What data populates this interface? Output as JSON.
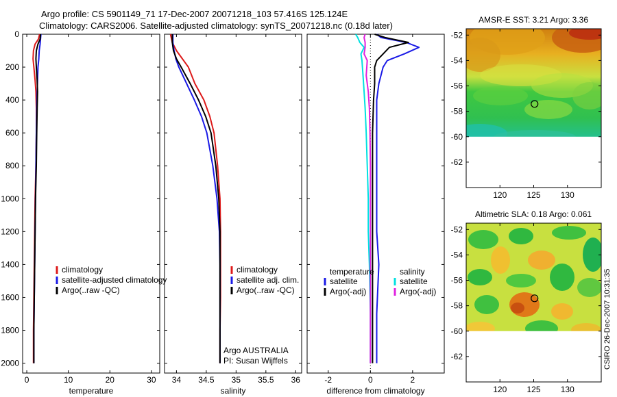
{
  "header": {
    "line1": "Argo profile: CS 5901149_71 17-Dec-2007 20071218_103 57.416S 125.124E",
    "line2": "Climatology: CARS2006. Satellite-adjusted climatology: synTS_20071218.nc (0.18d later)"
  },
  "side_label": "CSIRO 26-Dec-2007 10:31:35",
  "colors": {
    "red": "#dd1a1a",
    "blue": "#1a1ae6",
    "black": "#000000",
    "cyan": "#00e0e0",
    "magenta": "#e020e0"
  },
  "chart_data": [
    {
      "type": "line",
      "id": "temperature",
      "xlabel": "temperature",
      "ylabel": "",
      "xlim": [
        -1,
        32
      ],
      "ylim": [
        2060,
        0
      ],
      "xticks": [
        0,
        10,
        20,
        30
      ],
      "yticks": [
        0,
        200,
        400,
        600,
        800,
        1000,
        1200,
        1400,
        1600,
        1800,
        2000
      ],
      "legend": [
        "climatology",
        "satellite-adjusted climatology",
        "Argo(..raw -QC)"
      ],
      "series": [
        {
          "name": "climatology",
          "color": "red",
          "x": [
            3.1,
            2.8,
            2.0,
            1.6,
            1.5,
            1.7,
            2.0,
            2.2,
            2.3,
            2.3,
            2.2,
            2.0,
            1.9,
            1.8,
            1.7,
            1.6,
            1.6
          ],
          "y": [
            0,
            30,
            60,
            100,
            150,
            200,
            280,
            350,
            450,
            600,
            800,
            1000,
            1200,
            1400,
            1600,
            1800,
            2000
          ]
        },
        {
          "name": "satellite-adjusted climatology",
          "color": "blue",
          "x": [
            3.4,
            3.3,
            3.2,
            3.0,
            2.9,
            2.7,
            2.6,
            2.5,
            2.4,
            2.3,
            2.2,
            2.1,
            2.0,
            1.9,
            1.8,
            1.7,
            1.7
          ],
          "y": [
            0,
            30,
            60,
            100,
            150,
            200,
            280,
            350,
            450,
            600,
            800,
            1000,
            1200,
            1400,
            1600,
            1800,
            2000
          ]
        },
        {
          "name": "Argo(..raw -QC)",
          "color": "black",
          "x": [
            3.3,
            3.2,
            2.7,
            2.3,
            2.2,
            2.3,
            2.5,
            2.6,
            2.5,
            2.4,
            2.3,
            2.1,
            2.0,
            1.9,
            1.8,
            1.7,
            1.7
          ],
          "y": [
            0,
            30,
            60,
            100,
            150,
            200,
            280,
            350,
            450,
            600,
            800,
            1000,
            1200,
            1400,
            1600,
            1800,
            2000
          ]
        }
      ]
    },
    {
      "type": "line",
      "id": "salinity",
      "xlabel": "salinity",
      "ylabel": "",
      "xlim": [
        33.8,
        36.1
      ],
      "ylim": [
        2060,
        0
      ],
      "xticks": [
        34,
        34.5,
        35,
        35.5,
        36
      ],
      "legend": [
        "climatology",
        "satellite adj. clim.",
        "Argo(..raw -QC)"
      ],
      "series": [
        {
          "name": "climatology",
          "color": "red",
          "x": [
            33.9,
            33.93,
            34.0,
            34.1,
            34.2,
            34.31,
            34.46,
            34.56,
            34.63,
            34.69,
            34.73,
            34.74,
            34.74,
            34.74,
            34.73,
            34.73
          ],
          "y": [
            0,
            50,
            100,
            150,
            200,
            300,
            400,
            500,
            600,
            800,
            1000,
            1200,
            1400,
            1600,
            1800,
            2000
          ]
        },
        {
          "name": "satellite adj. clim.",
          "color": "blue",
          "x": [
            33.94,
            33.94,
            33.96,
            33.99,
            34.04,
            34.17,
            34.3,
            34.42,
            34.51,
            34.61,
            34.68,
            34.72,
            34.73,
            34.73,
            34.73,
            34.73
          ],
          "y": [
            0,
            50,
            100,
            150,
            200,
            300,
            400,
            500,
            600,
            800,
            1000,
            1200,
            1400,
            1600,
            1800,
            2000
          ]
        },
        {
          "name": "Argo(..raw -QC)",
          "color": "black",
          "x": [
            33.93,
            33.93,
            33.95,
            34.0,
            34.08,
            34.23,
            34.37,
            34.49,
            34.58,
            34.66,
            34.71,
            34.73,
            34.73,
            34.73,
            34.73,
            34.73
          ],
          "y": [
            0,
            50,
            100,
            150,
            200,
            300,
            400,
            500,
            600,
            800,
            1000,
            1200,
            1400,
            1600,
            1800,
            2000
          ]
        }
      ],
      "annotations": [
        "Argo AUSTRALIA",
        "PI: Susan Wijffels"
      ]
    },
    {
      "type": "line",
      "id": "difference",
      "xlabel": "difference from climatology",
      "ylabel": "",
      "xlim": [
        -3,
        3.5
      ],
      "ylim": [
        2060,
        0
      ],
      "xticks": [
        -2,
        0,
        2
      ],
      "legend_titles": [
        "temperature",
        "salinity"
      ],
      "legend": [
        "satellite",
        "Argo(-adj)",
        "satellite",
        "Argo(-adj)"
      ],
      "series": [
        {
          "name": "satellite",
          "group": "temperature",
          "color": "blue",
          "x": [
            0.3,
            0.5,
            1.7,
            2.3,
            1.6,
            0.8,
            0.6,
            0.4,
            0.3,
            0.3,
            0.3,
            0.3,
            0.3,
            0.4,
            0.3,
            0.3
          ],
          "y": [
            0,
            20,
            50,
            80,
            120,
            160,
            200,
            300,
            400,
            600,
            800,
            1000,
            1200,
            1400,
            1700,
            2000
          ]
        },
        {
          "name": "Argo(-adj)",
          "group": "temperature",
          "color": "black",
          "x": [
            0.2,
            0.7,
            1.8,
            0.9,
            0.6,
            0.3,
            0.2,
            0.2,
            0.15,
            0.1,
            0.1,
            0.1,
            0.1,
            0.1,
            0.1,
            0.1
          ],
          "y": [
            0,
            20,
            50,
            80,
            120,
            160,
            200,
            300,
            400,
            600,
            800,
            1000,
            1200,
            1400,
            1700,
            2000
          ]
        },
        {
          "name": "satellite",
          "group": "salinity",
          "color": "cyan",
          "x": [
            -0.7,
            -0.6,
            -0.5,
            -0.3,
            -0.45,
            -0.4,
            -0.35,
            -0.3,
            -0.25,
            -0.2,
            -0.15,
            -0.1,
            -0.1,
            -0.05,
            0.0,
            0.0
          ],
          "y": [
            0,
            20,
            50,
            80,
            120,
            160,
            250,
            350,
            450,
            600,
            800,
            1000,
            1200,
            1400,
            1700,
            2000
          ]
        },
        {
          "name": "Argo(-adj)",
          "group": "salinity",
          "color": "magenta",
          "x": [
            -0.25,
            -0.3,
            -0.25,
            -0.25,
            -0.3,
            -0.15,
            -0.2,
            -0.1,
            -0.05,
            -0.02,
            0.0,
            0.0,
            0.0,
            0.0,
            0.0,
            0.0
          ],
          "y": [
            0,
            20,
            50,
            80,
            120,
            160,
            250,
            350,
            450,
            600,
            800,
            1000,
            1200,
            1400,
            1700,
            2000
          ]
        }
      ]
    },
    {
      "type": "heatmap",
      "id": "amsr-sst",
      "title": "AMSR-E SST: 3.21 Argo: 3.36",
      "xlim": [
        115,
        135
      ],
      "ylim": [
        -64,
        -51.5
      ],
      "xticks": [
        120,
        125,
        130
      ],
      "yticks": [
        -52,
        -54,
        -56,
        -58,
        -60,
        -62
      ],
      "data_extent_lat": [
        -60,
        -51.5
      ],
      "marker": {
        "lon": 125.124,
        "lat": -57.416
      }
    },
    {
      "type": "heatmap",
      "id": "altimetric-sla",
      "title": "Altimetric SLA: 0.18 Argo: 0.061",
      "xlim": [
        115,
        135
      ],
      "ylim": [
        -64,
        -51.5
      ],
      "xticks": [
        120,
        125,
        130
      ],
      "yticks": [
        -52,
        -54,
        -56,
        -58,
        -60,
        -62
      ],
      "data_extent_lat": [
        -60,
        -51.5
      ],
      "marker": {
        "lon": 125.124,
        "lat": -57.416
      }
    }
  ]
}
